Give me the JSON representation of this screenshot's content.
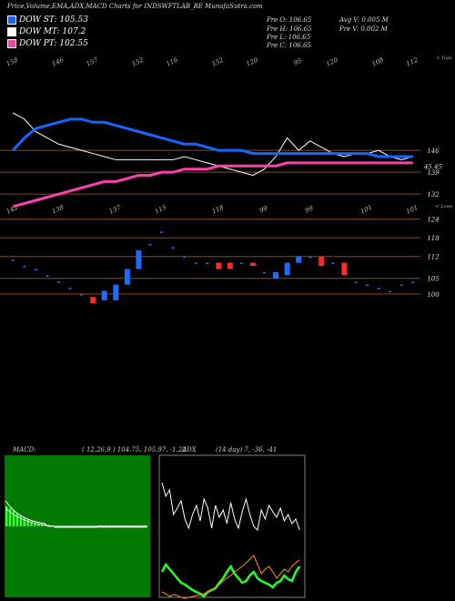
{
  "header": {
    "title": "Price,Volume,EMA,ADX,MACD Charts for INDSWFTLAB_BE MunafaSutra.com"
  },
  "legend": [
    {
      "label": "DOW ST: 105.53",
      "color": "#1565ff"
    },
    {
      "label": "DOW MT: 107.2",
      "color": "#ffffff"
    },
    {
      "label": "DOW PT: 102.55",
      "color": "#ff3fae"
    }
  ],
  "stats": {
    "left": [
      "Pre O: 106.65",
      "Pre H: 106.65",
      "Pre L: 106.65",
      "Pre C: 106.65"
    ],
    "right": [
      "Avg V: 0.005 M",
      "Pre V: 0.002 M"
    ]
  },
  "top_labels": [
    "158",
    "146",
    "157",
    "152",
    "116",
    "152",
    "120",
    "95",
    "120",
    "108",
    "112"
  ],
  "top_label_suffix": "< Tops",
  "low_labels": [
    "142",
    "138",
    "137",
    "115",
    "118",
    "99",
    "99",
    "101",
    "101"
  ],
  "low_label_suffix": "< Lows",
  "price_ticks": [
    "146",
    "45.45",
    "139",
    "132",
    "124",
    "118",
    "112",
    "105",
    "100"
  ],
  "macd_label": "MACD:",
  "macd_values": "( 12,26,9 ) 104.75, 105.97, -1.22",
  "adx_label": "ADX",
  "adx_values": "(14 day) 7, -36, -41",
  "colors": {
    "up_candle": "#1e6cff",
    "down_candle": "#ff2a2a",
    "ema_short": "#1565ff",
    "ema_long": "#ff3fae",
    "ref_line": "#8a4a1a",
    "macd_bg": "#007a00"
  },
  "chart_data": [
    {
      "type": "candlestick",
      "title": "",
      "ylim": [
        95,
        165
      ],
      "candles": [
        {
          "o": 111,
          "c": 111
        },
        {
          "o": 109,
          "c": 109
        },
        {
          "o": 108,
          "c": 108
        },
        {
          "o": 106,
          "c": 106
        },
        {
          "o": 104,
          "c": 104
        },
        {
          "o": 102,
          "c": 102
        },
        {
          "o": 100,
          "c": 100
        },
        {
          "o": 99,
          "c": 97
        },
        {
          "o": 98,
          "c": 101
        },
        {
          "o": 98,
          "c": 103
        },
        {
          "o": 103,
          "c": 108
        },
        {
          "o": 108,
          "c": 114
        },
        {
          "o": 116,
          "c": 116
        },
        {
          "o": 120,
          "c": 120
        },
        {
          "o": 115,
          "c": 115
        },
        {
          "o": 112,
          "c": 112
        },
        {
          "o": 110,
          "c": 110
        },
        {
          "o": 110,
          "c": 110
        },
        {
          "o": 110,
          "c": 108
        },
        {
          "o": 110,
          "c": 108
        },
        {
          "o": 110,
          "c": 110
        },
        {
          "o": 110,
          "c": 109
        },
        {
          "o": 107,
          "c": 107
        },
        {
          "o": 105,
          "c": 107
        },
        {
          "o": 106,
          "c": 110
        },
        {
          "o": 110,
          "c": 112
        },
        {
          "o": 112,
          "c": 112
        },
        {
          "o": 112,
          "c": 109
        },
        {
          "o": 110,
          "c": 110
        },
        {
          "o": 110,
          "c": 106
        },
        {
          "o": 104,
          "c": 104
        },
        {
          "o": 103,
          "c": 103
        },
        {
          "o": 102,
          "c": 102
        },
        {
          "o": 101,
          "c": 101
        },
        {
          "o": 103,
          "c": 103
        },
        {
          "o": 104,
          "c": 104
        }
      ],
      "ema_short": [
        146,
        150,
        153,
        154,
        155,
        156,
        156,
        155,
        155,
        154,
        153,
        152,
        151,
        150,
        149,
        148,
        148,
        147,
        146,
        146,
        146,
        145,
        145,
        145,
        145,
        145,
        145,
        145,
        145,
        145,
        145,
        145,
        144,
        144,
        144,
        144
      ],
      "ema_long": [
        128,
        129,
        130,
        131,
        132,
        133,
        134,
        135,
        136,
        136,
        137,
        138,
        138,
        139,
        139,
        140,
        140,
        140,
        141,
        141,
        141,
        141,
        141,
        141,
        142,
        142,
        142,
        142,
        142,
        142,
        142,
        142,
        142,
        142,
        142,
        142
      ],
      "close_line": [
        158,
        156,
        152,
        150,
        148,
        147,
        146,
        145,
        144,
        143,
        143,
        143,
        143,
        143,
        143,
        144,
        143,
        142,
        141,
        140,
        139,
        138,
        140,
        144,
        150,
        146,
        149,
        147,
        145,
        144,
        145,
        145,
        146,
        144,
        143,
        144
      ],
      "ref_levels": [
        146,
        139,
        132,
        124,
        118,
        112,
        105,
        100
      ]
    },
    {
      "type": "macd",
      "title": "MACD",
      "ylim": [
        -3,
        3
      ]
    },
    {
      "type": "adx",
      "title": "ADX",
      "ylim": [
        0,
        100
      ]
    }
  ]
}
